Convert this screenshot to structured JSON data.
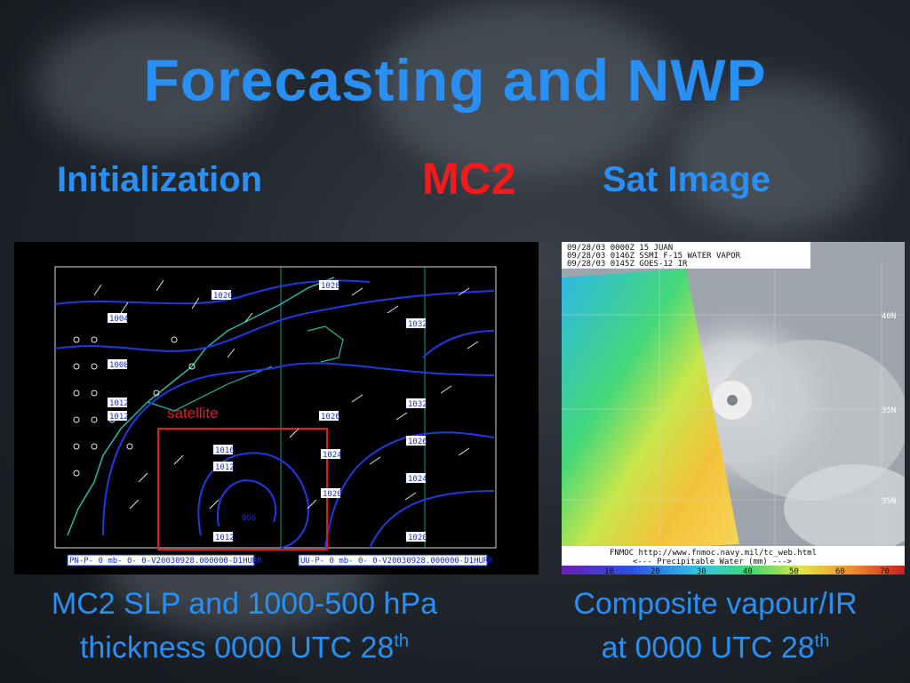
{
  "slide": {
    "title": "Forecasting and NWP",
    "subtitle_left": "Initialization",
    "subtitle_center": "MC2",
    "subtitle_right": "Sat Image"
  },
  "left_map": {
    "overlay_label": "satellite",
    "footer_left": "PN-P-    0 mb-  0-  0-V20030928.000000-D1HURR",
    "footer_right": "UU-P-    0 mb-  0-  0-V20030928.000000-D1HURR",
    "pressure_labels": [
      "1020",
      "1004",
      "1008",
      "1012",
      "1012",
      "1016",
      "1012",
      "1012",
      "1028",
      "1032",
      "1032",
      "1026",
      "1026",
      "1024",
      "1024",
      "1020",
      "1020",
      "996"
    ]
  },
  "right_image": {
    "header_lines": [
      "09/28/03 0000Z  15 JUAN",
      "09/28/03 0146Z  SSMI F-15 WATER VAPOR",
      "09/28/03 0145Z  GOES-12 IR"
    ],
    "lat_labels": [
      "40N",
      "35N",
      "35N"
    ],
    "footer_line1": "FNMOC  http://www.fnmoc.navy.mil/tc_web.html",
    "footer_line2": "<---   Precipitable Water (mm)   --->",
    "scale_ticks": [
      "10",
      "20",
      "30",
      "40",
      "50",
      "60",
      "70"
    ]
  },
  "captions": {
    "left_line1": "MC2 SLP and 1000-500 hPa",
    "left_line2": "thickness 0000 UTC 28",
    "left_sup": "th",
    "right_line1": "Composite vapour/IR",
    "right_line2": "at 0000 UTC 28",
    "right_sup": "th"
  }
}
